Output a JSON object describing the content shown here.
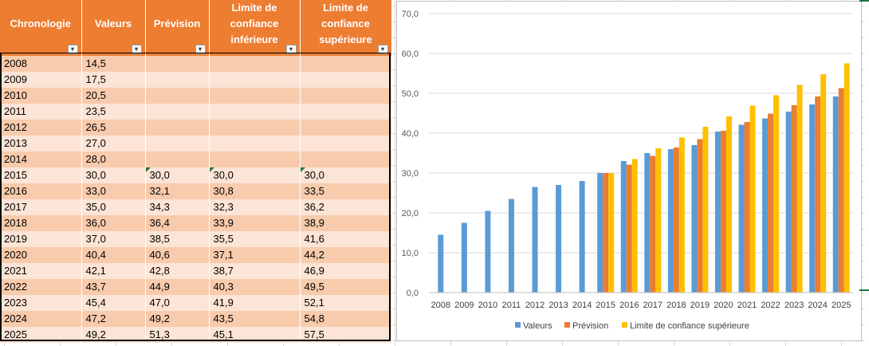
{
  "table": {
    "headers": [
      {
        "label": "Chronologie"
      },
      {
        "label": "Valeurs"
      },
      {
        "label": "Prévision"
      },
      {
        "label": "Limite de confiance inférieure"
      },
      {
        "label": "Limite de confiance supérieure"
      }
    ],
    "filter_glyph": "▾",
    "rows": [
      [
        "2008",
        "14,5",
        "",
        "",
        ""
      ],
      [
        "2009",
        "17,5",
        "",
        "",
        ""
      ],
      [
        "2010",
        "20,5",
        "",
        "",
        ""
      ],
      [
        "2011",
        "23,5",
        "",
        "",
        ""
      ],
      [
        "2012",
        "26,5",
        "",
        "",
        ""
      ],
      [
        "2013",
        "27,0",
        "",
        "",
        ""
      ],
      [
        "2014",
        "28,0",
        "",
        "",
        ""
      ],
      [
        "2015",
        "30,0",
        "30,0",
        "30,0",
        "30,0"
      ],
      [
        "2016",
        "33,0",
        "32,1",
        "30,8",
        "33,5"
      ],
      [
        "2017",
        "35,0",
        "34,3",
        "32,3",
        "36,2"
      ],
      [
        "2018",
        "36,0",
        "36,4",
        "33,9",
        "38,9"
      ],
      [
        "2019",
        "37,0",
        "38,5",
        "35,5",
        "41,6"
      ],
      [
        "2020",
        "40,4",
        "40,6",
        "37,1",
        "44,2"
      ],
      [
        "2021",
        "42,1",
        "42,8",
        "38,7",
        "46,9"
      ],
      [
        "2022",
        "43,7",
        "44,9",
        "40,3",
        "49,5"
      ],
      [
        "2023",
        "45,4",
        "47,0",
        "41,9",
        "52,1"
      ],
      [
        "2024",
        "47,2",
        "49,2",
        "43,5",
        "54,8"
      ],
      [
        "2025",
        "49,2",
        "51,3",
        "45,1",
        "57,5"
      ]
    ]
  },
  "colors": {
    "header_bg": "#ed7d31",
    "row_odd": "#f8cbad",
    "row_even": "#fce4d6",
    "series_valeurs": "#5b9bd5",
    "series_prevision": "#ed7d31",
    "series_limite_sup": "#ffc000",
    "gridline": "#d9d9d9"
  },
  "chart_data": {
    "type": "bar",
    "categories": [
      "2008",
      "2009",
      "2010",
      "2011",
      "2012",
      "2013",
      "2014",
      "2015",
      "2016",
      "2017",
      "2018",
      "2019",
      "2020",
      "2021",
      "2022",
      "2023",
      "2024",
      "2025"
    ],
    "series": [
      {
        "name": "Valeurs",
        "values": [
          14.5,
          17.5,
          20.5,
          23.5,
          26.5,
          27.0,
          28.0,
          30.0,
          33.0,
          35.0,
          36.0,
          37.0,
          40.4,
          42.1,
          43.7,
          45.4,
          47.2,
          49.2
        ]
      },
      {
        "name": "Prévision",
        "values": [
          null,
          null,
          null,
          null,
          null,
          null,
          null,
          30.0,
          32.1,
          34.3,
          36.4,
          38.5,
          40.6,
          42.8,
          44.9,
          47.0,
          49.2,
          51.3
        ]
      },
      {
        "name": "Limite de confiance supérieure",
        "values": [
          null,
          null,
          null,
          null,
          null,
          null,
          null,
          30.0,
          33.5,
          36.2,
          38.9,
          41.6,
          44.2,
          46.9,
          49.5,
          52.1,
          54.8,
          57.5
        ]
      }
    ],
    "ylim": [
      0,
      70
    ],
    "yticks": [
      "0,0",
      "10,0",
      "20,0",
      "30,0",
      "40,0",
      "50,0",
      "60,0",
      "70,0"
    ],
    "grid": true,
    "legend": "bottom"
  }
}
